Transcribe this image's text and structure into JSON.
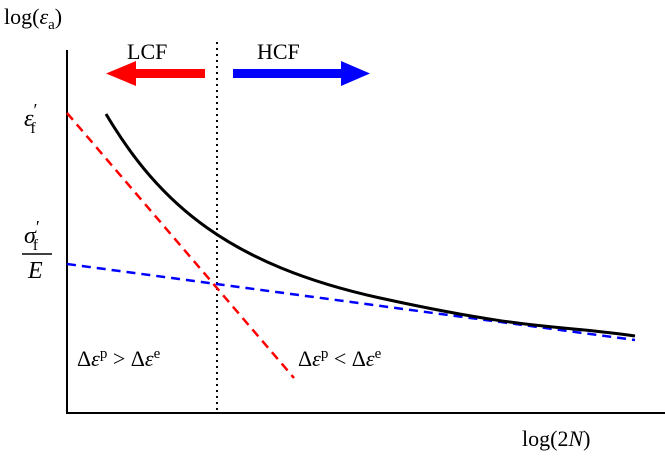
{
  "y_axis": {
    "label_main": "log(",
    "label_var": "ε",
    "label_sub": "a",
    "label_close": ")"
  },
  "x_axis": {
    "label_main": "log(2",
    "label_var": "N",
    "label_close": ")"
  },
  "y_ticks": {
    "eps_f": {
      "var": "ε",
      "prime": "′",
      "sub": "f"
    },
    "sigma_over_E": {
      "num_var": "σ",
      "num_prime": "′",
      "num_sub": "f",
      "den": "E"
    }
  },
  "regions": {
    "lcf": {
      "label": "LCF",
      "color": "#ff0000"
    },
    "hcf": {
      "label": "HCF",
      "color": "#0000ff"
    }
  },
  "annotations": {
    "plastic_dominant": {
      "delta1": "Δ",
      "var1": "ε",
      "sup1": "p",
      "relation": " > ",
      "delta2": "Δ",
      "var2": "ε",
      "sup2": "e"
    },
    "elastic_dominant": {
      "delta1": "Δ",
      "var1": "ε",
      "sup1": "p",
      "relation": " < ",
      "delta2": "Δ",
      "var2": "ε",
      "sup2": "e"
    }
  },
  "curves": {
    "total": {
      "color": "#000000",
      "style": "solid"
    },
    "plastic": {
      "color": "#ff0000",
      "style": "dashed"
    },
    "elastic": {
      "color": "#0000ff",
      "style": "dashed"
    }
  }
}
